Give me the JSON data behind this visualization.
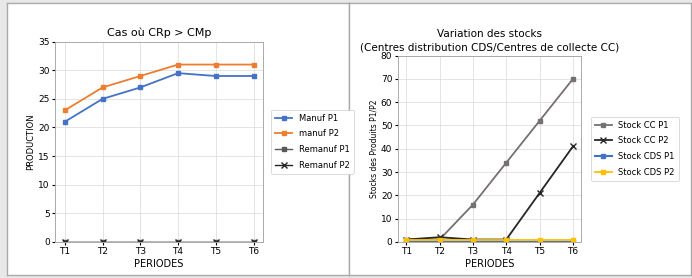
{
  "periods": [
    "T1",
    "T2",
    "T3",
    "T4",
    "T5",
    "T6"
  ],
  "chart1": {
    "title": "Cas où CRp > CMp",
    "xlabel": "PERIODES",
    "ylabel": "PRODUCTION",
    "ylim": [
      0,
      35
    ],
    "yticks": [
      0,
      5,
      10,
      15,
      20,
      25,
      30,
      35
    ],
    "manuf_p1": [
      21,
      25,
      27,
      29.5,
      29,
      29
    ],
    "manuf_p2": [
      23,
      27,
      29,
      31,
      31,
      31
    ],
    "remanuf_p1": [
      0,
      0,
      0,
      0,
      0,
      0
    ],
    "remanuf_p2": [
      0,
      0,
      0,
      0,
      0,
      0
    ],
    "color_manuf_p1": "#4472c4",
    "color_manuf_p2": "#ed7d31",
    "color_remanuf_p1": "#595959",
    "color_remanuf_p2": "#262626",
    "legend_labels": [
      "Manuf P1",
      "manuf P2",
      "Remanuf P1",
      "Remanuf P2"
    ]
  },
  "chart2": {
    "title": "Variation des stocks\n(Centres distribution CDS/Centres de collecte CC)",
    "xlabel": "PERIODES",
    "ylabel": "Stocks des Produits P1/P2",
    "ylim": [
      0,
      80
    ],
    "yticks": [
      0,
      10,
      20,
      30,
      40,
      50,
      60,
      70,
      80
    ],
    "stock_cc_p1": [
      1,
      1,
      16,
      34,
      52,
      70
    ],
    "stock_cc_p2": [
      1,
      2,
      1,
      1,
      21,
      41
    ],
    "stock_cds_p1": [
      0,
      0,
      0,
      0,
      0,
      0
    ],
    "stock_cds_p2": [
      1,
      1,
      1,
      1,
      1,
      1
    ],
    "color_cc_p1": "#767171",
    "color_cc_p2": "#262626",
    "color_cds_p1": "#4472c4",
    "color_cds_p2": "#ffc000",
    "legend_labels": [
      "Stock CC P1",
      "Stock CC P2",
      "Stock CDS P1",
      "Stock CDS P2"
    ]
  },
  "fig_background": "#e8e8e8",
  "panel_background": "#ffffff",
  "grid_color": "#d9d9d9"
}
